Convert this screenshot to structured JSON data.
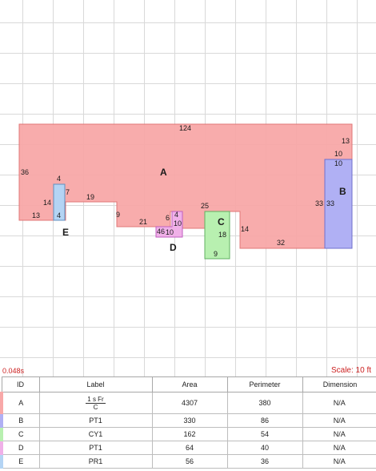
{
  "canvas": {
    "timer": "0.048s",
    "scale": "Scale: 10 ft"
  },
  "areas": {
    "A": {
      "letter": "A",
      "color": "#f8a8a8",
      "labels": [
        "124",
        "13",
        "10",
        "36",
        "14",
        "4",
        "7",
        "19",
        "13",
        "9",
        "21",
        "6",
        "4",
        "10",
        "25",
        "14",
        "32",
        "33"
      ]
    },
    "B": {
      "letter": "B",
      "color": "#b0b0f4",
      "labels": [
        "10",
        "33"
      ]
    },
    "C": {
      "letter": "C",
      "color": "#b8f0b0",
      "labels": [
        "18",
        "9"
      ]
    },
    "D": {
      "letter": "D",
      "color": "#f0b0e8",
      "labels": [
        "4",
        "6",
        "10"
      ]
    },
    "E": {
      "letter": "E",
      "color": "#b4d4f4",
      "labels": [
        "4",
        "14",
        "4"
      ]
    }
  },
  "table": {
    "headers": {
      "id": "ID",
      "label": "Label",
      "area": "Area",
      "perimeter": "Perimeter",
      "dimension": "Dimension"
    },
    "rows": [
      {
        "id": "A",
        "label_num": "1 s Fr",
        "label_den": "C",
        "area": "4307",
        "perimeter": "380",
        "dimension": "N/A",
        "color": "#f8a8a8"
      },
      {
        "id": "B",
        "label": "PT1",
        "area": "330",
        "perimeter": "86",
        "dimension": "N/A",
        "color": "#b0b0f4"
      },
      {
        "id": "C",
        "label": "CY1",
        "area": "162",
        "perimeter": "54",
        "dimension": "N/A",
        "color": "#b8f0b0"
      },
      {
        "id": "D",
        "label": "PT1",
        "area": "64",
        "perimeter": "40",
        "dimension": "N/A",
        "color": "#f0b0e8"
      },
      {
        "id": "E",
        "label": "PR1",
        "area": "56",
        "perimeter": "36",
        "dimension": "N/A",
        "color": "#b4d4f4"
      }
    ]
  }
}
